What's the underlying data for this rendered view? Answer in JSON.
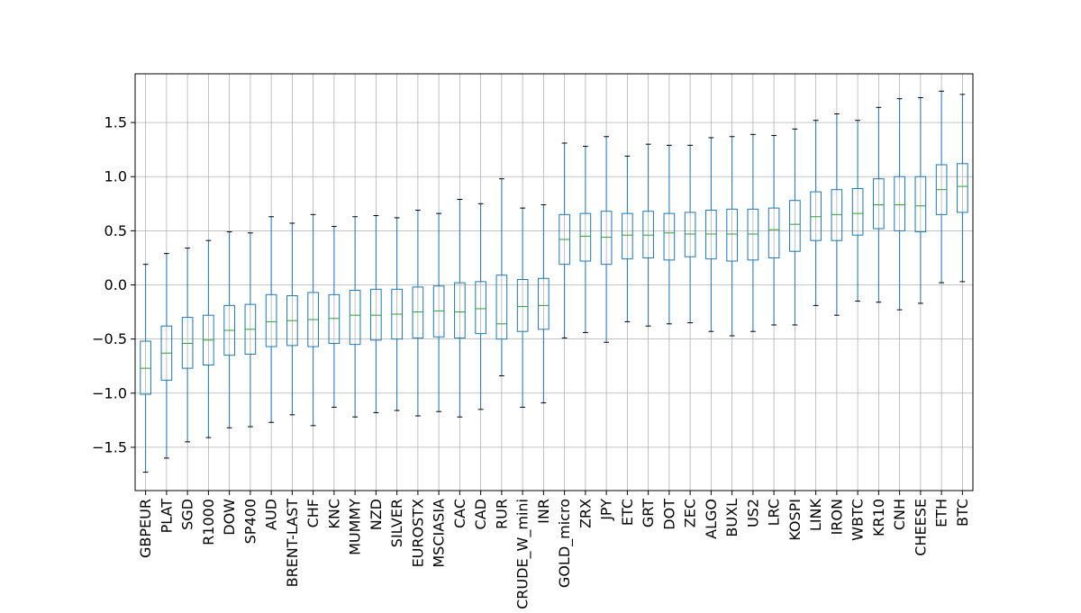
{
  "chart_data": {
    "type": "box",
    "title": "",
    "xlabel": "",
    "ylabel": "",
    "ylim": [
      -1.9,
      1.95
    ],
    "yticks": [
      -1.5,
      -1.0,
      -0.5,
      0.0,
      0.5,
      1.0,
      1.5
    ],
    "ytick_labels": [
      "−1.5",
      "−1.0",
      "−0.5",
      "0.0",
      "0.5",
      "1.0",
      "1.5"
    ],
    "grid": true,
    "colors": {
      "box": "#1f77b4",
      "median": "#2ca02c",
      "grid": "#b0b0b0",
      "axis": "#000000"
    },
    "categories": [
      "GBPEUR",
      "PLAT",
      "SGD",
      "R1000",
      "DOW",
      "SP400",
      "AUD",
      "BRENT-LAST",
      "CHF",
      "KNC",
      "MUMMY",
      "NZD",
      "SILVER",
      "EUROSTX",
      "MSCIASIA",
      "CAC",
      "CAD",
      "RUR",
      "CRUDE_W_mini",
      "INR",
      "GOLD_micro",
      "ZRX",
      "JPY",
      "ETC",
      "GRT",
      "DOT",
      "ZEC",
      "ALGO",
      "BUXL",
      "US2",
      "LRC",
      "KOSPI",
      "LINK",
      "IRON",
      "WBTC",
      "KR10",
      "CNH",
      "CHEESE",
      "ETH",
      "BTC"
    ],
    "boxes": [
      {
        "whislo": -1.73,
        "q1": -1.01,
        "med": -0.77,
        "q3": -0.52,
        "whishi": 0.19
      },
      {
        "whislo": -1.6,
        "q1": -0.88,
        "med": -0.63,
        "q3": -0.38,
        "whishi": 0.29
      },
      {
        "whislo": -1.45,
        "q1": -0.77,
        "med": -0.54,
        "q3": -0.3,
        "whishi": 0.34
      },
      {
        "whislo": -1.41,
        "q1": -0.74,
        "med": -0.51,
        "q3": -0.28,
        "whishi": 0.41
      },
      {
        "whislo": -1.32,
        "q1": -0.65,
        "med": -0.42,
        "q3": -0.19,
        "whishi": 0.49
      },
      {
        "whislo": -1.31,
        "q1": -0.64,
        "med": -0.41,
        "q3": -0.18,
        "whishi": 0.48
      },
      {
        "whislo": -1.27,
        "q1": -0.57,
        "med": -0.34,
        "q3": -0.09,
        "whishi": 0.63
      },
      {
        "whislo": -1.2,
        "q1": -0.56,
        "med": -0.33,
        "q3": -0.1,
        "whishi": 0.57
      },
      {
        "whislo": -1.3,
        "q1": -0.57,
        "med": -0.32,
        "q3": -0.07,
        "whishi": 0.65
      },
      {
        "whislo": -1.13,
        "q1": -0.54,
        "med": -0.31,
        "q3": -0.09,
        "whishi": 0.54
      },
      {
        "whislo": -1.22,
        "q1": -0.55,
        "med": -0.28,
        "q3": -0.05,
        "whishi": 0.63
      },
      {
        "whislo": -1.18,
        "q1": -0.51,
        "med": -0.28,
        "q3": -0.04,
        "whishi": 0.64
      },
      {
        "whislo": -1.16,
        "q1": -0.5,
        "med": -0.27,
        "q3": -0.04,
        "whishi": 0.62
      },
      {
        "whislo": -1.21,
        "q1": -0.49,
        "med": -0.25,
        "q3": -0.02,
        "whishi": 0.69
      },
      {
        "whislo": -1.17,
        "q1": -0.48,
        "med": -0.24,
        "q3": -0.01,
        "whishi": 0.66
      },
      {
        "whislo": -1.22,
        "q1": -0.49,
        "med": -0.25,
        "q3": 0.02,
        "whishi": 0.79
      },
      {
        "whislo": -1.15,
        "q1": -0.45,
        "med": -0.22,
        "q3": 0.03,
        "whishi": 0.75
      },
      {
        "whislo": -0.84,
        "q1": -0.5,
        "med": -0.36,
        "q3": 0.09,
        "whishi": 0.98
      },
      {
        "whislo": -1.13,
        "q1": -0.43,
        "med": -0.2,
        "q3": 0.05,
        "whishi": 0.71
      },
      {
        "whislo": -1.09,
        "q1": -0.41,
        "med": -0.19,
        "q3": 0.06,
        "whishi": 0.74
      },
      {
        "whislo": -0.49,
        "q1": 0.19,
        "med": 0.42,
        "q3": 0.65,
        "whishi": 1.31
      },
      {
        "whislo": -0.44,
        "q1": 0.22,
        "med": 0.45,
        "q3": 0.66,
        "whishi": 1.28
      },
      {
        "whislo": -0.53,
        "q1": 0.19,
        "med": 0.44,
        "q3": 0.68,
        "whishi": 1.37
      },
      {
        "whislo": -0.34,
        "q1": 0.24,
        "med": 0.46,
        "q3": 0.66,
        "whishi": 1.19
      },
      {
        "whislo": -0.38,
        "q1": 0.25,
        "med": 0.46,
        "q3": 0.68,
        "whishi": 1.3
      },
      {
        "whislo": -0.36,
        "q1": 0.23,
        "med": 0.48,
        "q3": 0.66,
        "whishi": 1.29
      },
      {
        "whislo": -0.35,
        "q1": 0.26,
        "med": 0.47,
        "q3": 0.67,
        "whishi": 1.29
      },
      {
        "whislo": -0.43,
        "q1": 0.24,
        "med": 0.47,
        "q3": 0.69,
        "whishi": 1.36
      },
      {
        "whislo": -0.47,
        "q1": 0.22,
        "med": 0.47,
        "q3": 0.7,
        "whishi": 1.37
      },
      {
        "whislo": -0.43,
        "q1": 0.23,
        "med": 0.47,
        "q3": 0.7,
        "whishi": 1.39
      },
      {
        "whislo": -0.37,
        "q1": 0.25,
        "med": 0.51,
        "q3": 0.71,
        "whishi": 1.38
      },
      {
        "whislo": -0.37,
        "q1": 0.31,
        "med": 0.56,
        "q3": 0.78,
        "whishi": 1.44
      },
      {
        "whislo": -0.19,
        "q1": 0.41,
        "med": 0.63,
        "q3": 0.86,
        "whishi": 1.52
      },
      {
        "whislo": -0.28,
        "q1": 0.41,
        "med": 0.65,
        "q3": 0.88,
        "whishi": 1.58
      },
      {
        "whislo": -0.15,
        "q1": 0.46,
        "med": 0.66,
        "q3": 0.89,
        "whishi": 1.52
      },
      {
        "whislo": -0.16,
        "q1": 0.52,
        "med": 0.74,
        "q3": 0.98,
        "whishi": 1.64
      },
      {
        "whislo": -0.23,
        "q1": 0.5,
        "med": 0.74,
        "q3": 1.0,
        "whishi": 1.72
      },
      {
        "whislo": -0.17,
        "q1": 0.49,
        "med": 0.73,
        "q3": 1.0,
        "whishi": 1.73
      },
      {
        "whislo": 0.02,
        "q1": 0.65,
        "med": 0.88,
        "q3": 1.11,
        "whishi": 1.79
      },
      {
        "whislo": 0.03,
        "q1": 0.67,
        "med": 0.91,
        "q3": 1.12,
        "whishi": 1.76
      }
    ]
  }
}
